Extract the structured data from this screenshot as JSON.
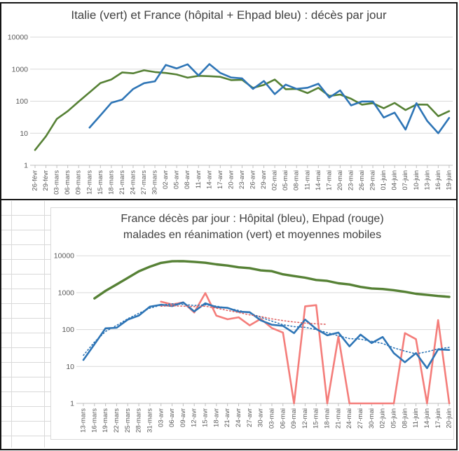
{
  "theme": {
    "background": "#ffffff",
    "outer_border": "#151515",
    "cell_grid_color": "#d9d9d9",
    "plot_grid_color": "#d9d9d9",
    "axis_line_color": "#bfbfbf",
    "tick_label_color": "#595959",
    "title_color": "#404040",
    "italy_green": "#568135",
    "france_blue": "#2e75b6",
    "ehpad_red": "#f47d7a"
  },
  "chart_data": [
    {
      "type": "line",
      "title": "Italie (vert) et France (hôpital + Ehpad bleu) : décès par jour",
      "y_scale": "log",
      "ylim": [
        1,
        10000
      ],
      "y_ticks": [
        10000,
        1000,
        100,
        10,
        1
      ],
      "grid": true,
      "legend": "none",
      "categories": [
        "26-févr",
        "29-févr",
        "03-mars",
        "06-mars",
        "09-mars",
        "12-mars",
        "15-mars",
        "18-mars",
        "21-mars",
        "24-mars",
        "27-mars",
        "30-mars",
        "02-avr",
        "05-avr",
        "08-avr",
        "11-avr",
        "14-avr",
        "17-avr",
        "20-avr",
        "23-avr",
        "26-avr",
        "29-avr",
        "02-mai",
        "05-mai",
        "08-mai",
        "11-mai",
        "14-mai",
        "17-mai",
        "20-mai",
        "23-mai",
        "26-mai",
        "29-mai",
        "01-juin",
        "04-juin",
        "07-juin",
        "10-juin",
        "13-juin",
        "16-juin",
        "19-juin"
      ],
      "series": [
        {
          "name": "Italie",
          "color": "#568135",
          "style": "solid",
          "width": 2.6,
          "values": [
            3,
            8,
            28,
            49,
            97,
            189,
            368,
            475,
            793,
            743,
            919,
            812,
            760,
            681,
            542,
            619,
            602,
            575,
            454,
            464,
            260,
            323,
            474,
            236,
            243,
            179,
            262,
            145,
            161,
            119,
            78,
            87,
            60,
            88,
            53,
            79,
            78,
            34,
            49
          ]
        },
        {
          "name": "France (hôpital + Ehpad)",
          "color": "#2e75b6",
          "style": "solid",
          "width": 2.6,
          "values": [
            null,
            null,
            null,
            null,
            null,
            15,
            36,
            89,
            112,
            240,
            365,
            418,
            1355,
            1053,
            1417,
            635,
            1438,
            761,
            547,
            516,
            242,
            427,
            166,
            330,
            243,
            263,
            351,
            130,
            217,
            74,
            98,
            98,
            31,
            44,
            13,
            87,
            24,
            10,
            30
          ]
        }
      ]
    },
    {
      "type": "line",
      "title": "France décès par jour : Hôpital (bleu), Ehpad (rouge)",
      "title_line2": "malades en réanimation (vert) et moyennes mobiles",
      "y_scale": "log",
      "ylim": [
        1,
        10000
      ],
      "y_ticks": [
        10000,
        1000,
        100,
        10,
        1
      ],
      "grid": true,
      "legend": "none",
      "categories": [
        "13-mars",
        "16-mars",
        "19-mars",
        "22-mars",
        "25-mars",
        "28-mars",
        "31-mars",
        "03-avr",
        "06-avr",
        "09-avr",
        "12-avr",
        "15-avr",
        "18-avr",
        "21-avr",
        "24-avr",
        "27-avr",
        "30-avr",
        "03-mai",
        "06-mai",
        "09-mai",
        "12-mai",
        "15-mai",
        "18-mai",
        "21-mai",
        "24-mai",
        "27-mai",
        "30-mai",
        "02-juin",
        "05-juin",
        "08-juin",
        "11-juin",
        "14-juin",
        "17-juin",
        "20-juin"
      ],
      "series": [
        {
          "name": "Malades en réanimation",
          "color": "#568135",
          "style": "solid",
          "width": 3.4,
          "values": [
            null,
            700,
            1122,
            1674,
            2516,
            3787,
            5056,
            6399,
            7072,
            7148,
            6845,
            6457,
            5833,
            5433,
            4870,
            4608,
            4019,
            3827,
            3147,
            2812,
            2542,
            2203,
            2087,
            1794,
            1665,
            1429,
            1302,
            1253,
            1163,
            1053,
            933,
            871,
            811,
            768
          ]
        },
        {
          "name": "Ehpad",
          "color": "#f47d7a",
          "style": "solid",
          "width": 2.6,
          "values": [
            null,
            null,
            null,
            null,
            null,
            null,
            null,
            570,
            477,
            544,
            290,
            974,
            238,
            190,
            215,
            130,
            195,
            110,
            83,
            1,
            426,
            460,
            1,
            65,
            1,
            1,
            1,
            1,
            1,
            80,
            55,
            1,
            180,
            1
          ]
        },
        {
          "name": "Hôpital",
          "color": "#2e75b6",
          "style": "solid",
          "width": 2.6,
          "values": [
            15,
            40,
            108,
            112,
            186,
            240,
            418,
            471,
            433,
            544,
            310,
            514,
            405,
            387,
            305,
            295,
            178,
            135,
            126,
            80,
            186,
            104,
            70,
            83,
            35,
            73,
            43,
            63,
            23,
            13,
            23,
            9,
            29,
            28
          ]
        },
        {
          "name": "Moyenne mobile Ehpad",
          "color": "#e06363",
          "style": "dotted",
          "width": 1.6,
          "values": [
            null,
            null,
            null,
            null,
            null,
            null,
            null,
            430,
            440,
            430,
            420,
            430,
            380,
            330,
            290,
            250,
            225,
            195,
            175,
            160,
            150,
            143,
            138,
            null,
            null,
            null,
            null,
            null,
            null,
            null,
            null,
            null,
            null,
            null
          ]
        },
        {
          "name": "Moyenne mobile Hôpital",
          "color": "#2e75b6",
          "style": "dotted",
          "width": 1.6,
          "values": [
            20,
            46,
            89,
            130,
            196,
            275,
            380,
            460,
            500,
            480,
            450,
            470,
            430,
            380,
            330,
            280,
            215,
            170,
            135,
            120,
            115,
            100,
            82,
            68,
            57,
            55,
            48,
            42,
            32,
            26,
            22,
            25,
            30,
            33
          ]
        }
      ]
    }
  ]
}
